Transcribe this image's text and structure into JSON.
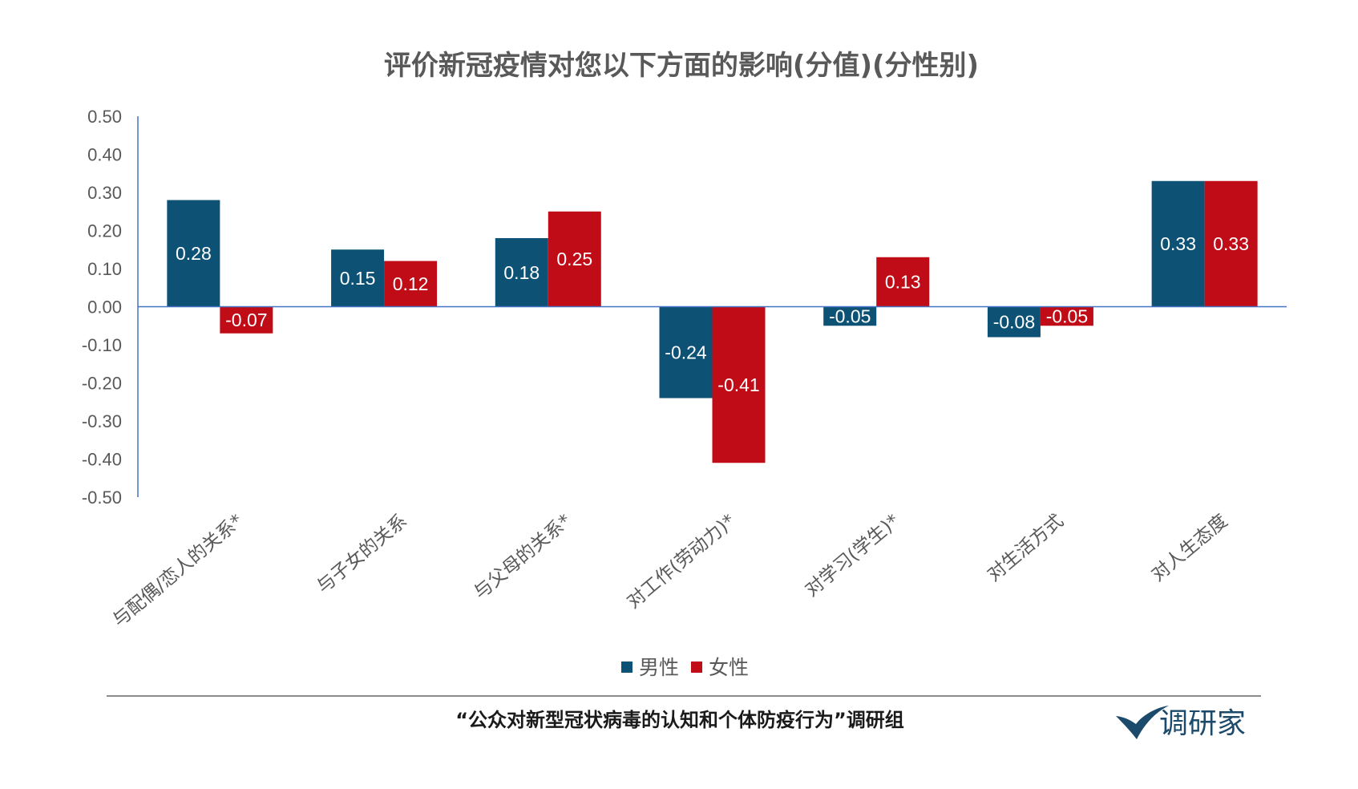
{
  "chart_data": {
    "type": "bar",
    "title": "评价新冠疫情对您以下方面的影响(分值)(分性别)",
    "categories": [
      "与配偶/恋人的关系*",
      "与子女的关系",
      "与父母的关系*",
      "对工作(劳动力)*",
      "对学习(学生)*",
      "对生活方式",
      "对人生态度"
    ],
    "series": [
      {
        "name": "男性",
        "color": "#0d5274",
        "values": [
          0.28,
          0.15,
          0.18,
          -0.24,
          -0.05,
          -0.08,
          0.33
        ],
        "labels": [
          "0.28",
          "0.15",
          "0.18",
          "-0.24",
          "-0.05",
          "-0.08",
          "0.33"
        ]
      },
      {
        "name": "女性",
        "color": "#c00c17",
        "values": [
          -0.07,
          0.12,
          0.25,
          -0.41,
          0.13,
          -0.05,
          0.33
        ],
        "labels": [
          "-0.07",
          "0.12",
          "0.25",
          "-0.41",
          "0.13",
          "-0.05",
          "0.33"
        ]
      }
    ],
    "ylim": [
      -0.5,
      0.5
    ],
    "yticks": [
      "0.50",
      "0.40",
      "0.30",
      "0.20",
      "0.10",
      "0.00",
      "-0.10",
      "-0.20",
      "-0.30",
      "-0.40",
      "-0.50"
    ],
    "ytick_values": [
      0.5,
      0.4,
      0.3,
      0.2,
      0.1,
      0,
      -0.1,
      -0.2,
      -0.3,
      -0.4,
      -0.5
    ],
    "xlabel": "",
    "ylabel": "",
    "grid": false,
    "legend": "bottom",
    "axis_color": "#4472c4"
  },
  "footer": {
    "source_text": "“公众对新型冠状病毒的认知和个体防疫行为”调研组",
    "logo_text": "调研家",
    "logo_icon": "check-mark-logo",
    "logo_color": "#1b4a6b"
  }
}
